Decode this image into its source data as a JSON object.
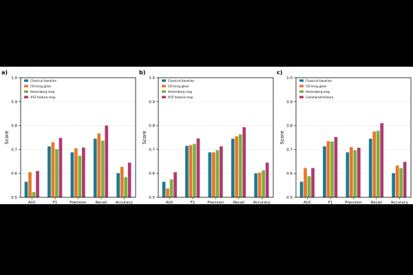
{
  "chart_data": [
    {
      "type": "bar",
      "panel_label": "a)",
      "ylabel": "Score",
      "ylim": [
        0.5,
        1.0
      ],
      "yticks": [
        "0.5",
        "0.6",
        "0.7",
        "0.8",
        "0.9",
        "1.0"
      ],
      "categories": [
        "AUC",
        "F1",
        "Precision",
        "Recall",
        "Accuracy"
      ],
      "grid": "horizontal dashed",
      "legend": "top-left",
      "series": [
        {
          "name": "Classical baseline",
          "color": "#1f7a8c",
          "values": [
            0.565,
            0.713,
            0.688,
            0.745,
            0.601
          ]
        },
        {
          "name": "CD-Ising glass",
          "color": "#e8762d",
          "values": [
            0.605,
            0.73,
            0.705,
            0.767,
            0.627
          ]
        },
        {
          "name": "Heisenberg map",
          "color": "#7bb03c",
          "values": [
            0.522,
            0.701,
            0.674,
            0.737,
            0.584
          ]
        },
        {
          "name": "XYZ feature-map",
          "color": "#b03a72",
          "values": [
            0.61,
            0.748,
            0.708,
            0.8,
            0.645
          ]
        }
      ]
    },
    {
      "type": "bar",
      "panel_label": "b)",
      "ylabel": "Score",
      "ylim": [
        0.5,
        1.0
      ],
      "yticks": [
        "0.5",
        "0.6",
        "0.7",
        "0.8",
        "0.9",
        "1.0"
      ],
      "categories": [
        "AUC",
        "F1",
        "Precision",
        "Recall",
        "Accuracy"
      ],
      "grid": "horizontal dashed",
      "legend": "top-left",
      "series": [
        {
          "name": "Classical baseline",
          "color": "#1f7a8c",
          "values": [
            0.565,
            0.715,
            0.688,
            0.745,
            0.6
          ]
        },
        {
          "name": "CD-Ising glass",
          "color": "#e8762d",
          "values": [
            0.537,
            0.718,
            0.688,
            0.755,
            0.603
          ]
        },
        {
          "name": "Heisenberg map",
          "color": "#7bb03c",
          "values": [
            0.575,
            0.723,
            0.697,
            0.763,
            0.613
          ]
        },
        {
          "name": "XYZ feature-map",
          "color": "#b03a72",
          "values": [
            0.605,
            0.746,
            0.713,
            0.793,
            0.645
          ]
        }
      ]
    },
    {
      "type": "bar",
      "panel_label": "c)",
      "ylabel": "Score",
      "ylim": [
        0.5,
        1.0
      ],
      "yticks": [
        "0.5",
        "0.6",
        "0.7",
        "0.8",
        "0.9",
        "1.0"
      ],
      "categories": [
        "AUC",
        "F1",
        "Precision",
        "Recall",
        "Accuracy"
      ],
      "grid": "horizontal dashed",
      "legend": "top-left",
      "series": [
        {
          "name": "Classical baseline",
          "color": "#1f7a8c",
          "values": [
            0.565,
            0.713,
            0.688,
            0.745,
            0.601
          ]
        },
        {
          "name": "CD-Ising glass",
          "color": "#e8762d",
          "values": [
            0.622,
            0.735,
            0.71,
            0.775,
            0.633
          ]
        },
        {
          "name": "Heisenberg map",
          "color": "#7bb03c",
          "values": [
            0.588,
            0.733,
            0.697,
            0.778,
            0.622
          ]
        },
        {
          "name": "Full/shared-feature",
          "color": "#b03a72",
          "values": [
            0.622,
            0.752,
            0.707,
            0.81,
            0.648
          ]
        }
      ]
    }
  ]
}
